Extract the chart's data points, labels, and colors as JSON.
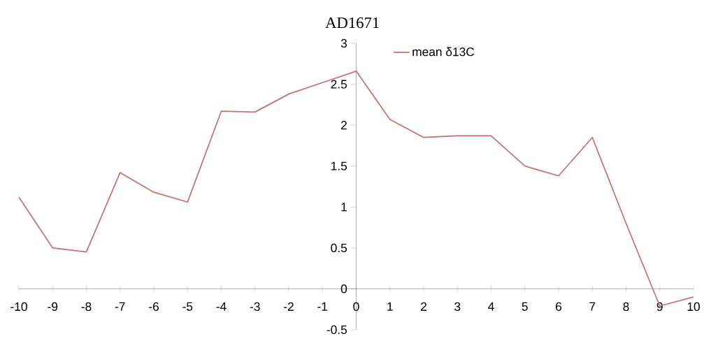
{
  "chart_data": {
    "type": "line",
    "title": "AD1671",
    "x": [
      -10,
      -9,
      -8,
      -7,
      -6,
      -5,
      -4,
      -3,
      -2,
      -1,
      0,
      1,
      2,
      3,
      4,
      5,
      6,
      7,
      8,
      9,
      10
    ],
    "series": [
      {
        "name": "mean δ13C",
        "color": "#c87070",
        "values": [
          1.12,
          0.5,
          0.45,
          1.42,
          1.18,
          1.06,
          2.17,
          2.16,
          2.38,
          2.52,
          2.66,
          2.07,
          1.85,
          1.87,
          1.87,
          1.5,
          1.38,
          1.85,
          0.8,
          -0.21,
          -0.1
        ]
      }
    ],
    "xlim": [
      -10,
      10
    ],
    "ylim": [
      -0.5,
      3
    ],
    "xticks": [
      -10,
      -9,
      -8,
      -7,
      -6,
      -5,
      -4,
      -3,
      -2,
      -1,
      0,
      1,
      2,
      3,
      4,
      5,
      6,
      7,
      8,
      9,
      10
    ],
    "yticks": [
      -0.5,
      0,
      0.5,
      1,
      1.5,
      2,
      2.5,
      3
    ],
    "grid": false,
    "legend": "top",
    "marker": "none",
    "line_style": "solid"
  }
}
